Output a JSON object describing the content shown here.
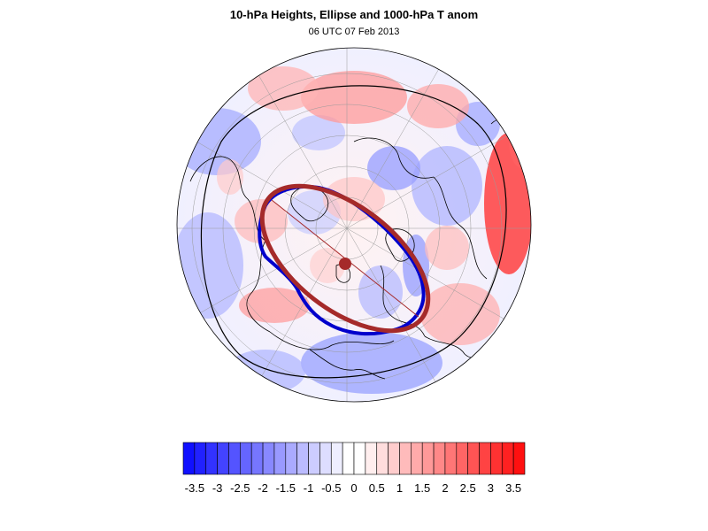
{
  "title": "10-hPa Heights, Ellipse and 1000-hPa T anom",
  "subtitle": "06 UTC 07 Feb 2013",
  "colorbar": {
    "min": -3.5,
    "max": 3.5,
    "step": 0.25,
    "labels": [
      "-3.5",
      "-3",
      "-2.5",
      "-2",
      "-1.5",
      "-1",
      "-0.5",
      "0",
      "0.5",
      "1",
      "1.5",
      "2",
      "2.5",
      "3",
      "3.5"
    ],
    "colors": {
      "neg_max": "#1010ff",
      "zero": "#ffffff",
      "pos_max": "#ff1010"
    }
  },
  "map": {
    "projection": "orthographic-polar",
    "ellipse_color": "#a52a2a",
    "height_contour_color": "#0000cc",
    "coastline_color": "#000000"
  }
}
